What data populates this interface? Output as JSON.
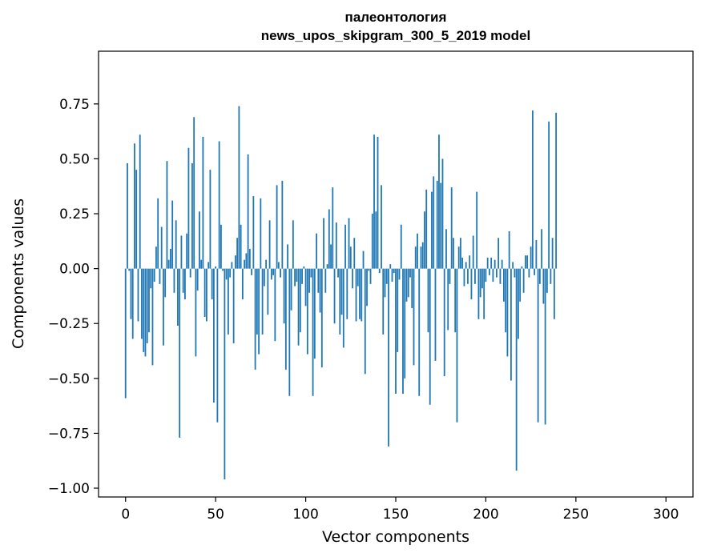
{
  "chart_data": {
    "type": "bar",
    "title_line1": "палеонтология",
    "title_line2": "news_upos_skipgram_300_5_2019 model",
    "xlabel": "Vector components",
    "ylabel": "Components values",
    "xlim": [
      -15,
      315
    ],
    "ylim": [
      -1.04,
      0.99
    ],
    "x_ticks": [
      "0",
      "50",
      "100",
      "150",
      "200",
      "250",
      "300"
    ],
    "x_tick_values": [
      0,
      50,
      100,
      150,
      200,
      250,
      300
    ],
    "y_ticks": [
      "0.75",
      "0.50",
      "0.25",
      "0.00",
      "−0.25",
      "−0.50",
      "−0.75",
      "−1.00"
    ],
    "y_tick_values": [
      0.75,
      0.5,
      0.25,
      0.0,
      -0.25,
      -0.5,
      -0.75,
      -1.0
    ],
    "bar_color": "#1f77b4",
    "grid": false,
    "values": [
      -0.59,
      0.48,
      -0.01,
      -0.23,
      -0.32,
      0.57,
      0.45,
      -0.24,
      0.61,
      -0.32,
      -0.38,
      -0.4,
      -0.34,
      -0.29,
      -0.09,
      -0.44,
      -0.06,
      0.1,
      0.32,
      -0.07,
      0.19,
      -0.35,
      -0.13,
      0.49,
      0.04,
      0.09,
      0.31,
      -0.11,
      0.22,
      -0.26,
      -0.77,
      0.15,
      -0.11,
      -0.14,
      0.16,
      0.55,
      -0.04,
      0.48,
      0.69,
      -0.4,
      -0.1,
      0.26,
      0.04,
      0.6,
      -0.22,
      -0.24,
      0.03,
      0.45,
      -0.14,
      -0.61,
      0.01,
      -0.7,
      0.58,
      0.2,
      -0.01,
      -0.96,
      -0.05,
      -0.3,
      -0.04,
      0.03,
      -0.34,
      0.06,
      0.14,
      0.74,
      0.2,
      -0.14,
      0.04,
      0.07,
      0.52,
      0.09,
      -0.03,
      0.33,
      -0.46,
      -0.3,
      -0.39,
      0.32,
      -0.3,
      -0.08,
      0.04,
      -0.21,
      0.22,
      -0.05,
      -0.03,
      -0.33,
      0.38,
      0.03,
      -0.04,
      0.4,
      -0.25,
      -0.46,
      0.11,
      -0.58,
      -0.19,
      0.22,
      -0.08,
      -0.06,
      -0.35,
      -0.29,
      -0.07,
      0.01,
      -0.17,
      -0.39,
      -0.11,
      -0.04,
      -0.58,
      -0.41,
      0.16,
      -0.11,
      -0.2,
      -0.45,
      0.23,
      -0.11,
      0.02,
      0.27,
      0.11,
      0.37,
      -0.25,
      0.21,
      -0.04,
      -0.3,
      -0.21,
      -0.36,
      0.2,
      -0.23,
      0.23,
      0.1,
      -0.09,
      0.14,
      -0.24,
      -0.08,
      -0.23,
      -0.24,
      0.08,
      -0.48,
      -0.17,
      -0.01,
      -0.07,
      0.25,
      0.61,
      0.26,
      0.6,
      -0.02,
      0.38,
      -0.3,
      -0.13,
      -0.07,
      -0.81,
      0.02,
      -0.06,
      -0.02,
      -0.57,
      -0.38,
      -0.05,
      0.2,
      -0.57,
      -0.5,
      -0.15,
      -0.13,
      -0.04,
      -0.18,
      -0.44,
      0.1,
      0.16,
      -0.58,
      0.1,
      0.12,
      0.26,
      0.36,
      -0.29,
      -0.62,
      0.35,
      0.42,
      -0.42,
      0.4,
      0.61,
      0.39,
      0.5,
      -0.49,
      0.18,
      -0.28,
      -0.07,
      0.37,
      0.14,
      -0.29,
      -0.7,
      0.1,
      0.14,
      0.05,
      -0.08,
      0.03,
      -0.07,
      0.06,
      -0.14,
      0.15,
      -0.07,
      0.35,
      -0.23,
      -0.13,
      -0.09,
      -0.23,
      -0.06,
      0.05,
      -0.03,
      0.05,
      -0.06,
      0.04,
      -0.04,
      0.14,
      -0.07,
      0.04,
      -0.15,
      -0.29,
      -0.4,
      0.17,
      -0.51,
      0.03,
      -0.04,
      -0.92,
      -0.32,
      -0.15,
      0.01,
      -0.11,
      0.06,
      0.06,
      -0.04,
      0.1,
      0.72,
      -0.03,
      0.13,
      -0.7,
      -0.07,
      0.18,
      -0.16,
      -0.71,
      -0.11,
      0.67,
      -0.07,
      0.14,
      -0.23,
      0.71
    ]
  }
}
